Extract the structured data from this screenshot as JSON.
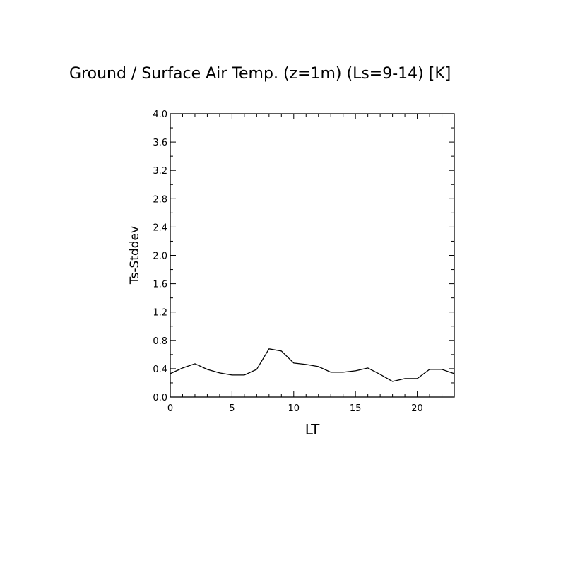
{
  "chart_data": {
    "type": "line",
    "title": "Ground / Surface Air Temp. (z=1m) (Ls=9-14) [K]",
    "xlabel": "LT",
    "ylabel": "Ts-Stddev",
    "xlim": [
      0,
      23
    ],
    "ylim": [
      0,
      4.0
    ],
    "x_ticks": [
      0,
      5,
      10,
      15,
      20
    ],
    "x_tick_labels": [
      "0",
      "5",
      "10",
      "15",
      "20"
    ],
    "y_ticks": [
      0,
      0.4,
      0.8,
      1.2,
      1.6,
      2.0,
      2.4,
      2.8,
      3.2,
      3.6,
      4.0
    ],
    "y_tick_labels": [
      "0.0",
      "0.4",
      "0.8",
      "1.2",
      "1.6",
      "2.0",
      "2.4",
      "2.8",
      "3.2",
      "3.6",
      "4.0"
    ],
    "grid": false,
    "series": [
      {
        "color": "#000000",
        "x": [
          0,
          1,
          2,
          3,
          4,
          5,
          6,
          7,
          8,
          9,
          10,
          11,
          12,
          13,
          14,
          15,
          16,
          17,
          18,
          19,
          20,
          21,
          22,
          23
        ],
        "values": [
          0.33,
          0.41,
          0.47,
          0.39,
          0.34,
          0.31,
          0.31,
          0.39,
          0.68,
          0.65,
          0.48,
          0.46,
          0.43,
          0.35,
          0.35,
          0.37,
          0.41,
          0.32,
          0.22,
          0.26,
          0.26,
          0.39,
          0.39,
          0.33
        ]
      }
    ]
  }
}
